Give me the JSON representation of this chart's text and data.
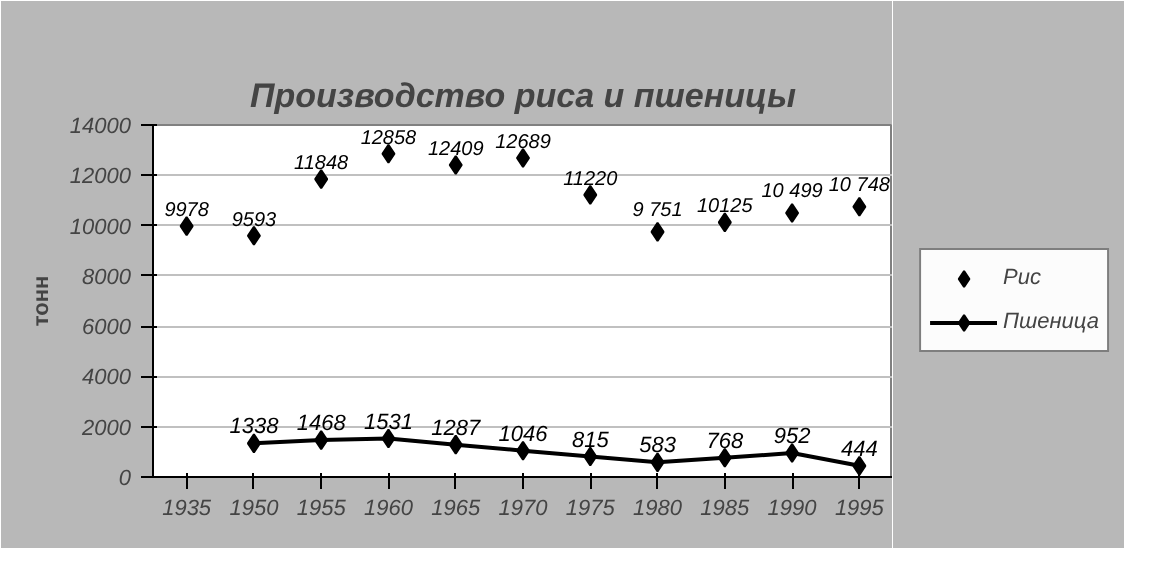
{
  "chart_data": {
    "type": "scatter",
    "title": "Производство риса и пшеницы",
    "ylabel": "тонн",
    "categories": [
      "1935",
      "1950",
      "1955",
      "1960",
      "1965",
      "1970",
      "1975",
      "1980",
      "1985",
      "1990",
      "1995"
    ],
    "series": [
      {
        "name": "Рис",
        "color": "#000000",
        "values": [
          9978,
          9593,
          11848,
          12858,
          12409,
          12689,
          11220,
          9751,
          10125,
          10499,
          10748
        ],
        "value_labels": [
          "9978",
          "9593",
          "11848",
          "12858",
          "12409",
          "12689",
          "11220",
          "9 751",
          "10125",
          "10 499",
          "10 748"
        ]
      },
      {
        "name": "Пшеница",
        "type": "line",
        "color": "#000000",
        "values": [
          null,
          1338,
          1468,
          1531,
          1287,
          1046,
          815,
          583,
          768,
          952,
          444
        ],
        "value_labels": [
          null,
          "1338",
          "1468",
          "1531",
          "1287",
          "1046",
          "815",
          "583",
          "768",
          "952",
          "444"
        ]
      }
    ],
    "ylim": [
      0,
      14000
    ],
    "yticks": [
      0,
      2000,
      4000,
      6000,
      8000,
      10000,
      12000,
      14000
    ],
    "grid": "y",
    "legend": "right",
    "marker": "diamond",
    "line_style": "solid"
  }
}
